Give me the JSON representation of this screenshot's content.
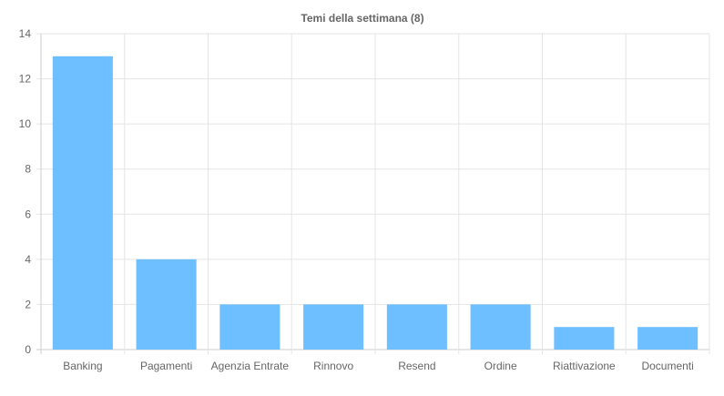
{
  "chart_data": {
    "type": "bar",
    "title": "Temi della settimana (8)",
    "categories": [
      "Banking",
      "Pagamenti",
      "Agenzia Entrate",
      "Rinnovo",
      "Resend",
      "Ordine",
      "Riattivazione",
      "Documenti"
    ],
    "series": [
      {
        "values": [
          13,
          4,
          2,
          2,
          2,
          2,
          1,
          1
        ]
      }
    ],
    "yticks": [
      "0",
      "2",
      "4",
      "6",
      "8",
      "10",
      "12",
      "14"
    ],
    "ylim": [
      0,
      14
    ],
    "grid": true,
    "legend": "none",
    "colors": {
      "bar": "#6ebfff",
      "grid": "#e5e5e5",
      "axis": "#cccccc",
      "text": "#666666",
      "title": "#666666"
    }
  }
}
